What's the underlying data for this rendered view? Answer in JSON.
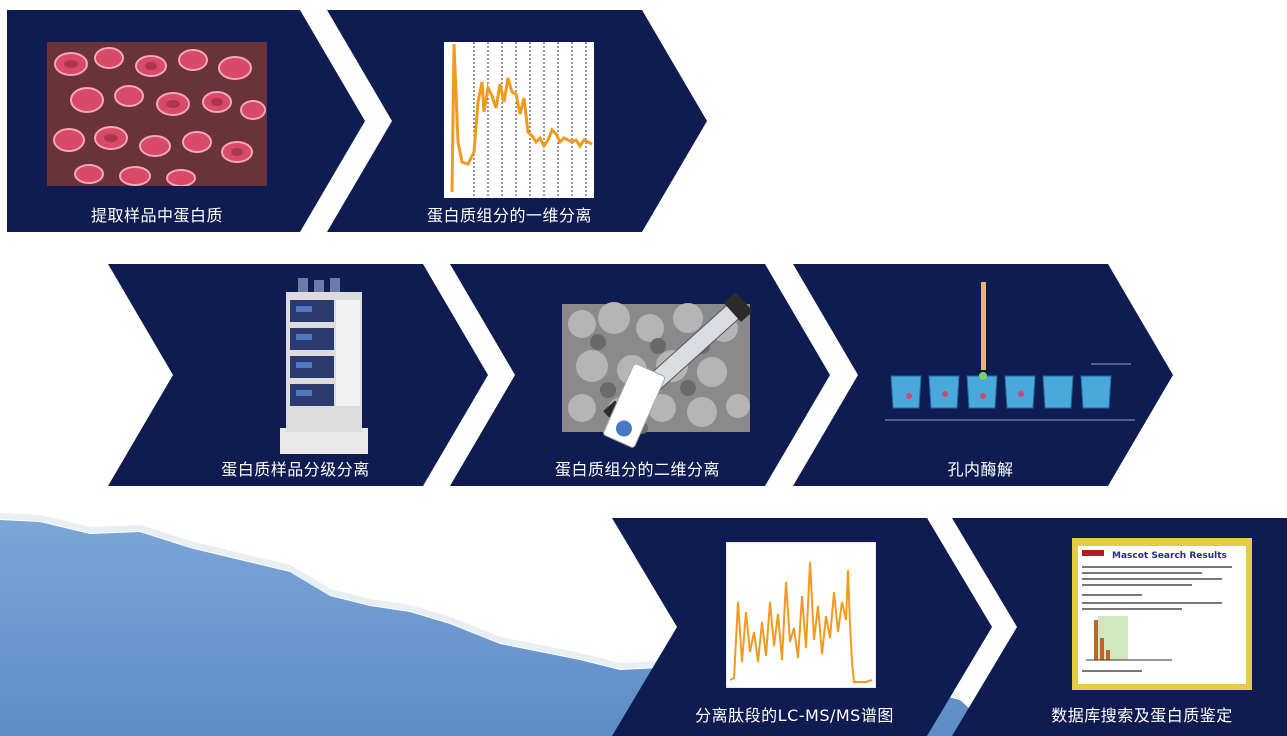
{
  "colors": {
    "chevron": "#0f1c52",
    "sea": "#6e9bd0",
    "orange": "#f29a1e"
  },
  "steps": [
    {
      "label": "提取样品中蛋白质",
      "icon": "red-blood-cells-image"
    },
    {
      "label": "蛋白质组分的一维分离",
      "icon": "chromatogram-1d-icon"
    },
    {
      "label": "蛋白质样品分级分离",
      "icon": "hplc-instrument-icon"
    },
    {
      "label": "蛋白质组分的二维分离",
      "icon": "chromatography-column-icon"
    },
    {
      "label": "孔内酶解",
      "icon": "well-plate-digestion-icon"
    },
    {
      "label": "分离肽段的LC-MS/MS谱图",
      "icon": "lc-ms-spectrum-icon"
    },
    {
      "label": "数据库搜索及蛋白质鉴定",
      "icon": "search-results-screenshot-icon"
    }
  ],
  "screenshot_title": "Mascot Search Results"
}
